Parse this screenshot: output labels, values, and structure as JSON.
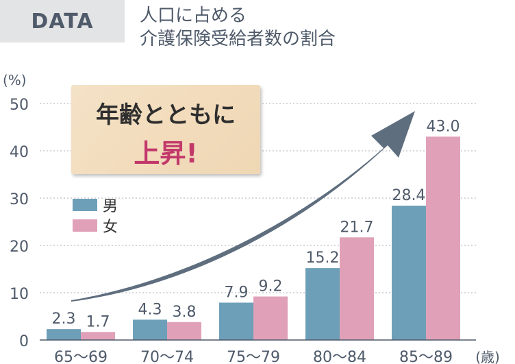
{
  "badge": "DATA",
  "title_lines": [
    "人口に占める",
    "介護保険受給者数の割合"
  ],
  "callout": {
    "line1": "年齢とともに",
    "line2": "上昇!"
  },
  "colors": {
    "male": "#6e9fb8",
    "female": "#e0a1b8",
    "arrow": "#5f6e7e",
    "text": "#4f5a6a",
    "accent": "#c2386a"
  },
  "chart_data": {
    "type": "bar",
    "ylabel": "(%)",
    "xlabel": "(歳)",
    "ylim": [
      0,
      50
    ],
    "yticks": [
      0,
      10,
      20,
      30,
      40,
      50
    ],
    "grid": true,
    "legend": "left",
    "categories": [
      "65〜69",
      "70〜74",
      "75〜79",
      "80〜84",
      "85〜89"
    ],
    "series": [
      {
        "name": "男",
        "values": [
          2.3,
          4.3,
          7.9,
          15.2,
          28.4
        ]
      },
      {
        "name": "女",
        "values": [
          1.7,
          3.8,
          9.2,
          21.7,
          43.0
        ]
      }
    ],
    "value_labels": [
      [
        "2.3",
        "4.3",
        "7.9",
        "15.2",
        "28.4"
      ],
      [
        "1.7",
        "3.8",
        "9.2",
        "21.7",
        "43.0"
      ]
    ],
    "ytick_labels": [
      "0",
      "10",
      "20",
      "30",
      "40",
      "50"
    ]
  }
}
